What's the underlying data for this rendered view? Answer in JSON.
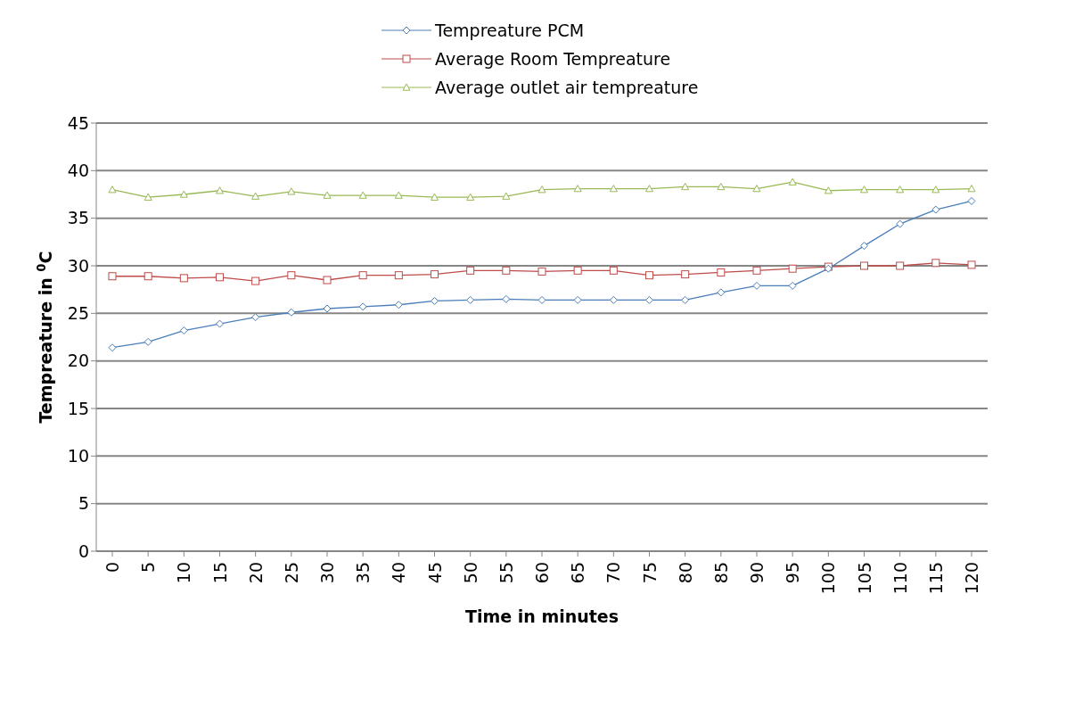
{
  "chart_data": {
    "type": "line",
    "xlabel": "Time in minutes",
    "ylabel": "Tempreature in $^{0}$C",
    "categories": [
      "0",
      "5",
      "10",
      "15",
      "20",
      "25",
      "30",
      "35",
      "40",
      "45",
      "50",
      "55",
      "60",
      "65",
      "70",
      "75",
      "80",
      "85",
      "90",
      "95",
      "100",
      "105",
      "110",
      "115",
      "120"
    ],
    "series": [
      {
        "name": "Tempreature PCM",
        "color": "#4a7ebb",
        "marker": "diamond",
        "values": [
          21.4,
          22.0,
          23.2,
          23.9,
          24.6,
          25.1,
          25.5,
          25.7,
          25.9,
          26.3,
          26.4,
          26.5,
          26.4,
          26.4,
          26.4,
          26.4,
          26.4,
          27.2,
          27.9,
          27.9,
          29.7,
          32.1,
          34.4,
          35.9,
          36.8
        ]
      },
      {
        "name": "Average Room Tempreature",
        "color": "#be4b48",
        "marker": "square",
        "values": [
          28.9,
          28.9,
          28.7,
          28.8,
          28.4,
          29.0,
          28.5,
          29.0,
          29.0,
          29.1,
          29.5,
          29.5,
          29.4,
          29.5,
          29.5,
          29.0,
          29.1,
          29.3,
          29.5,
          29.7,
          29.9,
          30.0,
          30.0,
          30.3,
          30.1
        ]
      },
      {
        "name": "Average outlet air tempreature",
        "color": "#98b954",
        "marker": "triangle",
        "values": [
          38.0,
          37.2,
          37.5,
          37.9,
          37.3,
          37.8,
          37.4,
          37.4,
          37.4,
          37.2,
          37.2,
          37.3,
          38.0,
          38.1,
          38.1,
          38.1,
          38.3,
          38.3,
          38.1,
          38.8,
          37.9,
          38.0,
          38.0,
          38.0,
          38.1
        ]
      }
    ],
    "ylim": [
      0,
      45
    ],
    "yticks": [
      0,
      5,
      10,
      15,
      20,
      25,
      30,
      35,
      40,
      45
    ],
    "grid": "y",
    "legend": "top",
    "line_style": "solid"
  }
}
